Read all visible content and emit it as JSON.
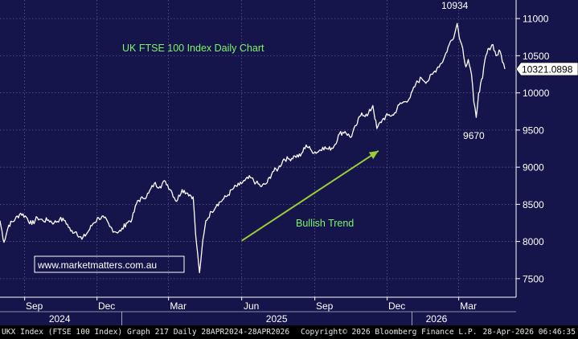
{
  "chart_data": {
    "type": "line",
    "title": "UK FTSE 100 Index Daily Chart",
    "source_link": "www.marketmatters.com.au",
    "ylim": [
      7250,
      11250
    ],
    "y_ticks": [
      7500,
      8000,
      8500,
      9000,
      9500,
      10000,
      10500,
      11000
    ],
    "x_range": [
      "2024-08-01",
      "2026-04-28"
    ],
    "x_month_ticks": [
      {
        "date": "2024-09-01",
        "label": "Sep"
      },
      {
        "date": "2024-12-01",
        "label": "Dec"
      },
      {
        "date": "2025-03-01",
        "label": "Mar"
      },
      {
        "date": "2025-06-01",
        "label": "Jun"
      },
      {
        "date": "2025-09-01",
        "label": "Sep"
      },
      {
        "date": "2025-12-01",
        "label": "Dec"
      },
      {
        "date": "2026-03-01",
        "label": "Mar"
      }
    ],
    "x_year_labels": [
      {
        "date": "2024-10-15",
        "label": "2024"
      },
      {
        "date": "2025-07-15",
        "label": "2025"
      },
      {
        "date": "2026-02-01",
        "label": "2026"
      }
    ],
    "last_value": "10321.0898",
    "series": [
      {
        "points": [
          [
            "2024-08-01",
            8280
          ],
          [
            "2024-08-06",
            7990
          ],
          [
            "2024-08-12",
            8220
          ],
          [
            "2024-08-20",
            8300
          ],
          [
            "2024-08-27",
            8380
          ],
          [
            "2024-09-03",
            8330
          ],
          [
            "2024-09-10",
            8230
          ],
          [
            "2024-09-17",
            8320
          ],
          [
            "2024-09-24",
            8280
          ],
          [
            "2024-10-01",
            8290
          ],
          [
            "2024-10-08",
            8250
          ],
          [
            "2024-10-15",
            8300
          ],
          [
            "2024-10-22",
            8280
          ],
          [
            "2024-10-29",
            8140
          ],
          [
            "2024-11-05",
            8130
          ],
          [
            "2024-11-12",
            8030
          ],
          [
            "2024-11-19",
            8120
          ],
          [
            "2024-11-26",
            8240
          ],
          [
            "2024-12-03",
            8320
          ],
          [
            "2024-12-10",
            8320
          ],
          [
            "2024-12-17",
            8200
          ],
          [
            "2024-12-24",
            8130
          ],
          [
            "2024-12-31",
            8140
          ],
          [
            "2025-01-07",
            8250
          ],
          [
            "2025-01-14",
            8300
          ],
          [
            "2025-01-21",
            8550
          ],
          [
            "2025-01-28",
            8580
          ],
          [
            "2025-02-04",
            8650
          ],
          [
            "2025-02-11",
            8780
          ],
          [
            "2025-02-18",
            8740
          ],
          [
            "2025-02-25",
            8810
          ],
          [
            "2025-03-04",
            8690
          ],
          [
            "2025-03-11",
            8540
          ],
          [
            "2025-03-18",
            8700
          ],
          [
            "2025-03-25",
            8650
          ],
          [
            "2025-04-01",
            8600
          ],
          [
            "2025-04-04",
            8100
          ],
          [
            "2025-04-08",
            7680
          ],
          [
            "2025-04-09",
            7580
          ],
          [
            "2025-04-12",
            7900
          ],
          [
            "2025-04-17",
            8280
          ],
          [
            "2025-04-24",
            8400
          ],
          [
            "2025-05-01",
            8500
          ],
          [
            "2025-05-08",
            8560
          ],
          [
            "2025-05-15",
            8630
          ],
          [
            "2025-05-22",
            8720
          ],
          [
            "2025-05-29",
            8760
          ],
          [
            "2025-06-05",
            8820
          ],
          [
            "2025-06-12",
            8860
          ],
          [
            "2025-06-19",
            8790
          ],
          [
            "2025-06-26",
            8740
          ],
          [
            "2025-07-03",
            8790
          ],
          [
            "2025-07-10",
            8940
          ],
          [
            "2025-07-17",
            8980
          ],
          [
            "2025-07-24",
            9110
          ],
          [
            "2025-07-31",
            9110
          ],
          [
            "2025-08-07",
            9150
          ],
          [
            "2025-08-14",
            9150
          ],
          [
            "2025-08-21",
            9300
          ],
          [
            "2025-08-28",
            9220
          ],
          [
            "2025-09-04",
            9200
          ],
          [
            "2025-09-11",
            9270
          ],
          [
            "2025-09-18",
            9240
          ],
          [
            "2025-09-25",
            9280
          ],
          [
            "2025-10-02",
            9450
          ],
          [
            "2025-10-09",
            9480
          ],
          [
            "2025-10-16",
            9400
          ],
          [
            "2025-10-23",
            9560
          ],
          [
            "2025-10-30",
            9730
          ],
          [
            "2025-11-06",
            9690
          ],
          [
            "2025-11-13",
            9830
          ],
          [
            "2025-11-18",
            9520
          ],
          [
            "2025-11-25",
            9640
          ],
          [
            "2025-12-02",
            9700
          ],
          [
            "2025-12-09",
            9700
          ],
          [
            "2025-12-16",
            9840
          ],
          [
            "2025-12-23",
            9880
          ],
          [
            "2025-12-30",
            9940
          ],
          [
            "2026-01-06",
            10120
          ],
          [
            "2026-01-13",
            10200
          ],
          [
            "2026-01-20",
            10150
          ],
          [
            "2026-01-27",
            10250
          ],
          [
            "2026-02-03",
            10350
          ],
          [
            "2026-02-10",
            10450
          ],
          [
            "2026-02-17",
            10650
          ],
          [
            "2026-02-24",
            10800
          ],
          [
            "2026-02-27",
            10934
          ],
          [
            "2026-03-03",
            10700
          ],
          [
            "2026-03-06",
            10600
          ],
          [
            "2026-03-10",
            10350
          ],
          [
            "2026-03-13",
            10450
          ],
          [
            "2026-03-17",
            10250
          ],
          [
            "2026-03-20",
            9880
          ],
          [
            "2026-03-23",
            9670
          ],
          [
            "2026-03-26",
            10000
          ],
          [
            "2026-03-31",
            10200
          ],
          [
            "2026-04-03",
            10450
          ],
          [
            "2026-04-08",
            10600
          ],
          [
            "2026-04-13",
            10650
          ],
          [
            "2026-04-17",
            10500
          ],
          [
            "2026-04-22",
            10560
          ],
          [
            "2026-04-28",
            10321
          ]
        ]
      }
    ],
    "annotations": [
      {
        "text": "10934",
        "date": "2026-02-27",
        "value": 10934,
        "place": "above"
      },
      {
        "text": "9670",
        "date": "2026-03-23",
        "value": 9670,
        "place": "below"
      },
      {
        "text": "Bullish Trend",
        "kind": "trend-arrow",
        "from": [
          "2025-06-01",
          8010
        ],
        "to": [
          "2025-11-20",
          9220
        ]
      }
    ],
    "colors": {
      "background": "#16154b",
      "grid": "#5a5a86",
      "price_line": "#ffffff",
      "title_text": "#7cf56a",
      "trend_arrow": "#9ccc38",
      "trend_text": "#7cf56a",
      "link_text": "#ffffff",
      "link_border": "#ffffff"
    }
  },
  "footer": {
    "left": "UKX Index (FTSE 100 Index) Graph 217 Daily 28APR2024-28APR2026",
    "middle": "Copyright© 2026 Bloomberg Finance L.P.",
    "right": "28-Apr-2026 06:46:35"
  }
}
